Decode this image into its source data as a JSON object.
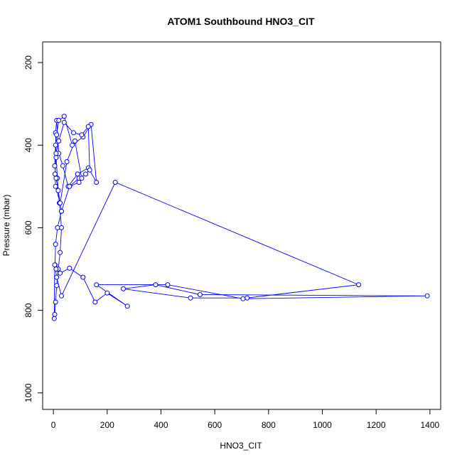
{
  "chart_data": {
    "type": "line",
    "title": "ATOM1 Southbound HNO3_CIT",
    "xlabel": "HNO3_CIT",
    "ylabel": "Pressure (mbar)",
    "xlim": [
      -40,
      1440
    ],
    "ylim": [
      1040,
      150
    ],
    "y_inverted": true,
    "xticks": [
      0,
      200,
      400,
      600,
      800,
      1000,
      1200,
      1400
    ],
    "yticks": [
      200,
      400,
      600,
      800,
      1000
    ],
    "grid": false,
    "legend": "none",
    "colors": {
      "series": "#0000ff",
      "axis": "#000000"
    },
    "series": [
      {
        "marker": "open-circle",
        "x": [
          5,
          8,
          12,
          18,
          25,
          30,
          22,
          15,
          10,
          8,
          12,
          20,
          35,
          55,
          90,
          130,
          160,
          140,
          110,
          70,
          40,
          20,
          12,
          8,
          5,
          10,
          18,
          30,
          60,
          95,
          120,
          135,
          130,
          105,
          75,
          40,
          20,
          10,
          6,
          8,
          25,
          50,
          80,
          105,
          95,
          60,
          30,
          15,
          8,
          6,
          12,
          30,
          230,
          1135,
          720,
          510,
          260,
          380,
          545,
          1390,
          705,
          425,
          160,
          275,
          200,
          155,
          110,
          60,
          25,
          10,
          5,
          3
        ],
        "y": [
          810,
          780,
          740,
          700,
          660,
          600,
          540,
          480,
          430,
          370,
          340,
          420,
          450,
          500,
          470,
          455,
          490,
          350,
          380,
          400,
          330,
          340,
          375,
          400,
          450,
          480,
          510,
          560,
          500,
          480,
          470,
          460,
          355,
          375,
          370,
          345,
          390,
          420,
          470,
          500,
          540,
          440,
          390,
          480,
          490,
          500,
          560,
          600,
          640,
          690,
          720,
          765,
          490,
          738,
          770,
          770,
          748,
          738,
          762,
          765,
          772,
          738,
          738,
          790,
          758,
          780,
          720,
          698,
          710,
          700,
          690,
          820
        ]
      }
    ]
  }
}
